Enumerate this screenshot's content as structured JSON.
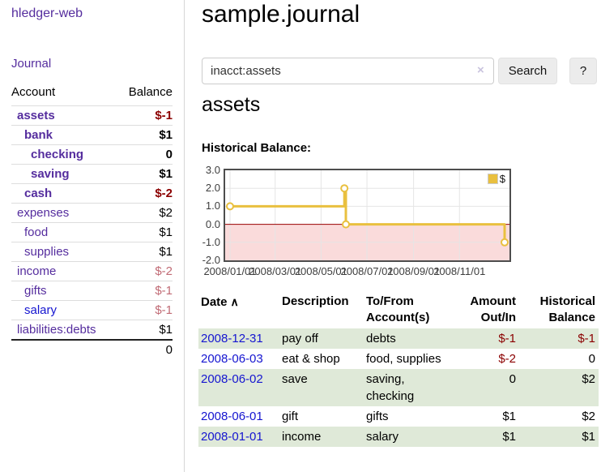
{
  "brand": {
    "title": "hledger-web"
  },
  "sidebar": {
    "journal_link": "Journal",
    "account_header": "Account",
    "balance_header": "Balance",
    "accounts": [
      {
        "name": "assets",
        "balance": "$-1"
      },
      {
        "name": "bank",
        "balance": "$1"
      },
      {
        "name": "checking",
        "balance": "0"
      },
      {
        "name": "saving",
        "balance": "$1"
      },
      {
        "name": "cash",
        "balance": "$-2"
      },
      {
        "name": "expenses",
        "balance": "$2"
      },
      {
        "name": "food",
        "balance": "$1"
      },
      {
        "name": "supplies",
        "balance": "$1"
      },
      {
        "name": "income",
        "balance": "$-2"
      },
      {
        "name": "gifts",
        "balance": "$-1"
      },
      {
        "name": "salary",
        "balance": "$-1"
      },
      {
        "name": "liabilities:debts",
        "balance": "$1"
      }
    ],
    "total": "0"
  },
  "header": {
    "title": "sample.journal"
  },
  "search": {
    "value": "inacct:assets",
    "clear_icon": "×",
    "button_label": "Search",
    "help_label": "?"
  },
  "account_page": {
    "heading": "assets",
    "chart_title": "Historical Balance:"
  },
  "colors": {
    "link_purple": "#552d9e",
    "link_blue": "#1515d0",
    "negative": "#8b0000",
    "negative_muted": "#c16b75",
    "row_stripe_green": "#dfe9d8",
    "chart_line_gold": "#e9c03f"
  },
  "chart_data": {
    "type": "line",
    "title": "Historical Balance:",
    "series": [
      {
        "name": "$",
        "color": "#e9c03f",
        "step": true,
        "points": [
          [
            "2008-01-01",
            1
          ],
          [
            "2008-06-01",
            2
          ],
          [
            "2008-06-03",
            0
          ],
          [
            "2008-12-31",
            -1
          ]
        ]
      }
    ],
    "x_range": [
      "2008-01-01",
      "2008-12-31"
    ],
    "x_tick_dates": [
      "2008-01-01",
      "2008-03-01",
      "2008-05-01",
      "2008-07-01",
      "2008-09-01",
      "2008-11-01"
    ],
    "x_tick_labels": [
      "2008/01/01",
      "2008/03/01",
      "2008/05/01",
      "2008/07/01",
      "2008/09/01",
      "2008/11/01"
    ],
    "y_ticks": [
      "3.0",
      "2.0",
      "1.0",
      "0.0",
      "-1.0",
      "-2.0"
    ],
    "ylim": [
      -2,
      3
    ],
    "grid": true,
    "legend_position": "top-right",
    "negative_region_color": "#fadbdb",
    "zero_line_color": "#990000"
  },
  "register": {
    "headers": {
      "date": "Date",
      "sort_icon": "∧",
      "description": "Description",
      "to_from": "To/From\nAccount(s)",
      "amount": "Amount\nOut/In",
      "balance": "Historical\nBalance"
    },
    "rows": [
      {
        "date": "2008-12-31",
        "description": "pay off",
        "to_from": "debts",
        "amount": "$-1",
        "balance": "$-1"
      },
      {
        "date": "2008-06-03",
        "description": "eat & shop",
        "to_from": "food, supplies",
        "amount": "$-2",
        "balance": "0"
      },
      {
        "date": "2008-06-02",
        "description": "save",
        "to_from": "saving,\nchecking",
        "amount": "0",
        "balance": "$2"
      },
      {
        "date": "2008-06-01",
        "description": "gift",
        "to_from": "gifts",
        "amount": "$1",
        "balance": "$2"
      },
      {
        "date": "2008-01-01",
        "description": "income",
        "to_from": "salary",
        "amount": "$1",
        "balance": "$1"
      }
    ]
  }
}
